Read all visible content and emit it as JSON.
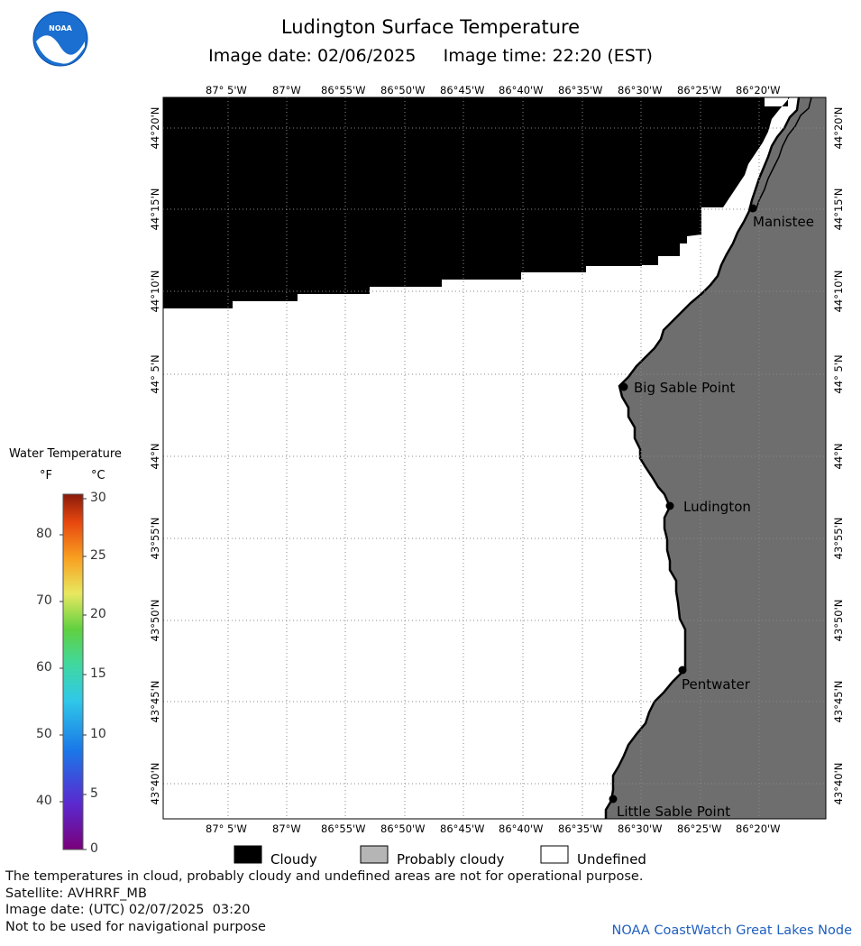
{
  "header": {
    "title": "Ludington Surface Temperature",
    "subtitle": "Image date: 02/06/2025     Image time: 22:20 (EST)",
    "logo_text": "NOAA"
  },
  "map": {
    "lon_ticks_top": [
      "87° 5'W",
      "87°W",
      "86°55'W",
      "86°50'W",
      "86°45'W",
      "86°40'W",
      "86°35'W",
      "86°30'W",
      "86°25'W",
      "86°20'W"
    ],
    "lon_ticks_bottom": [
      "87° 5'W",
      "87°W",
      "86°55'W",
      "86°50'W",
      "86°45'W",
      "86°40'W",
      "86°35'W",
      "86°30'W",
      "86°25'W",
      "86°20'W"
    ],
    "lat_ticks": [
      "44°20'N",
      "44°15'N",
      "44°10'N",
      "44° 5'N",
      "44°N",
      "43°55'N",
      "43°50'N",
      "43°45'N",
      "43°40'N"
    ],
    "places": [
      "Manistee",
      "Big Sable Point",
      "Ludington",
      "Pentwater",
      "Little Sable Point"
    ],
    "colors": {
      "cloudy": "#000000",
      "probably_cloudy": "#6e6e6e",
      "undefined": "#ffffff",
      "grid": "#888888"
    }
  },
  "legend": {
    "title": "Water Temperature",
    "unit_f": "°F",
    "unit_c": "°C",
    "fahrenheit_ticks": [
      "80",
      "70",
      "60",
      "50",
      "40"
    ],
    "celsius_ticks": [
      "30",
      "25",
      "20",
      "15",
      "10",
      "5",
      "0"
    ]
  },
  "key": {
    "cloudy": "Cloudy",
    "probably_cloudy": "Probably cloudy",
    "undefined": "Undefined"
  },
  "footer": {
    "note1": "The temperatures in cloud, probably cloudy and undefined areas are not for operational purpose.",
    "satellite": "Satellite: AVHRRF_MB",
    "utc_date": "Image date: (UTC) 02/07/2025  03:20",
    "nav_warning": "Not to be used for navigational purpose",
    "node": "NOAA CoastWatch Great Lakes Node"
  }
}
